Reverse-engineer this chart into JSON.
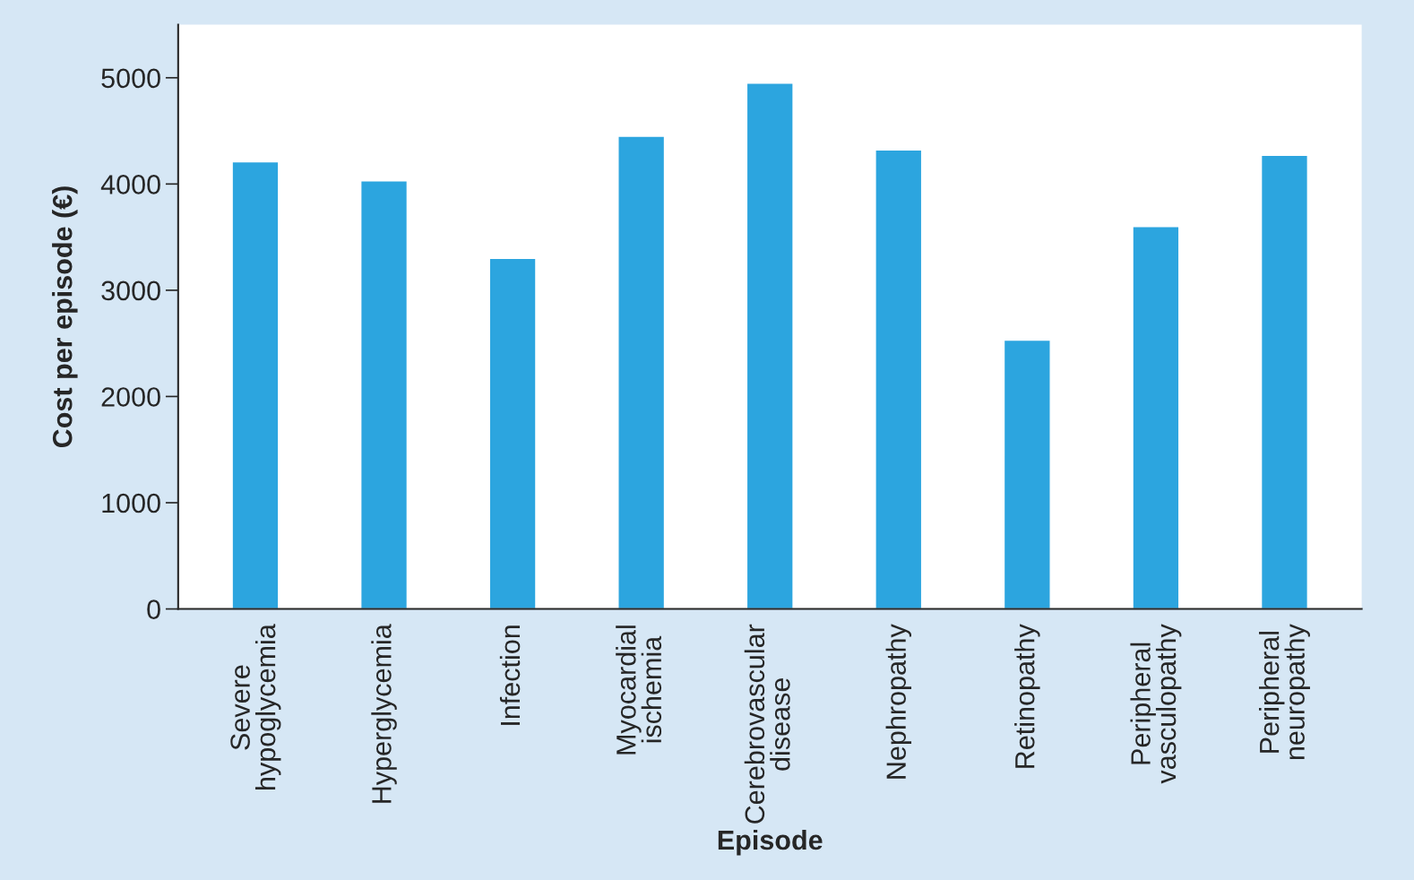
{
  "chart_data": {
    "type": "bar",
    "xlabel": "Episode",
    "ylabel": "Cost per episode (€)",
    "categories": [
      "Severe\nhypoglycemia",
      "Hyperglycemia",
      "Infection",
      "Myocardial\nischemia",
      "Cerebrovascular\ndisease",
      "Nephropathy",
      "Retinopathy",
      "Peripheral\nvasculopathy",
      "Peripheral\nneuropathy"
    ],
    "values": [
      4210,
      4030,
      3300,
      4450,
      4950,
      4320,
      2530,
      3600,
      4270
    ],
    "color": "#2ca5df",
    "ylim": [
      0,
      5500
    ],
    "yticks": [
      0,
      1000,
      2000,
      3000,
      4000,
      5000
    ],
    "grid": false
  }
}
